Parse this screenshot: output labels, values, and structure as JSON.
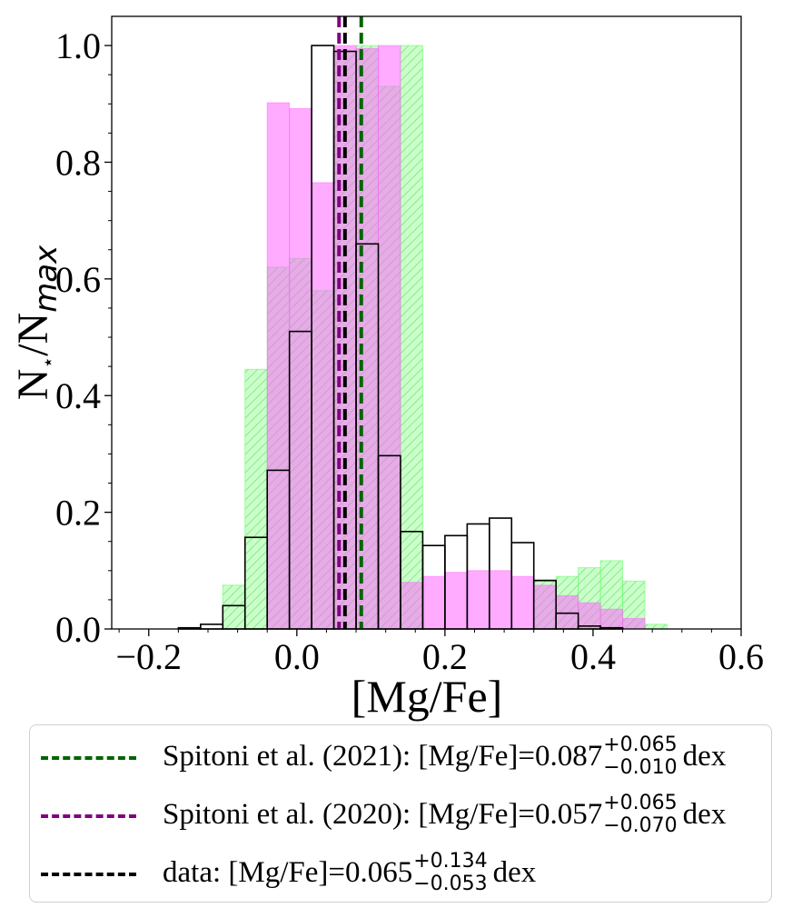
{
  "chart_data": {
    "type": "histogram",
    "xlabel": "[Mg/Fe]",
    "ylabel_main": "N",
    "ylabel_star": "⋆",
    "ylabel_slash": "/N",
    "ylabel_sub": "max",
    "xlim": [
      -0.25,
      0.6
    ],
    "ylim": [
      0.0,
      1.05
    ],
    "xticks": [
      -0.2,
      0.0,
      0.2,
      0.4,
      0.6
    ],
    "xtick_labels": [
      "−0.2",
      "0.0",
      "0.2",
      "0.4",
      "0.6"
    ],
    "yticks": [
      0.0,
      0.2,
      0.4,
      0.6,
      0.8,
      1.0
    ],
    "ytick_labels": [
      "0.0",
      "0.2",
      "0.4",
      "0.6",
      "0.8",
      "1.0"
    ],
    "bin_edges": [
      -0.16,
      -0.13,
      -0.1,
      -0.07,
      -0.04,
      -0.01,
      0.02,
      0.05,
      0.08,
      0.11,
      0.14,
      0.17,
      0.2,
      0.23,
      0.26,
      0.29,
      0.32,
      0.35,
      0.38,
      0.41,
      0.44,
      0.47,
      0.5
    ],
    "series": [
      {
        "name": "Spitoni et al. (2021) model",
        "color": "#66ff66",
        "style": "hatched",
        "values": [
          0,
          0,
          0.075,
          0.445,
          0.62,
          0.635,
          0.58,
          0.99,
          1.0,
          0.93,
          1.0,
          0,
          0,
          0,
          0,
          0,
          0.085,
          0.09,
          0.105,
          0.117,
          0.082,
          0.008
        ]
      },
      {
        "name": "Spitoni et al. (2020) model",
        "color": "#ff66ff",
        "style": "filled",
        "values": [
          0,
          0,
          0,
          0,
          0.902,
          0.892,
          0.765,
          1.0,
          0.995,
          1.0,
          0.08,
          0.09,
          0.097,
          0.1,
          0.1,
          0.09,
          0.075,
          0.057,
          0.045,
          0.034,
          0.018,
          0
        ]
      },
      {
        "name": "data",
        "color": "#000000",
        "style": "step",
        "values": [
          0.002,
          0.008,
          0.04,
          0.157,
          0.272,
          0.51,
          1.0,
          0.99,
          0.66,
          0.297,
          0.167,
          0.143,
          0.16,
          0.18,
          0.19,
          0.148,
          0.083,
          0.027,
          0.005,
          0.002,
          0,
          0
        ]
      }
    ],
    "vlines": [
      {
        "name": "Spitoni et al. (2021)",
        "x": 0.087,
        "color": "#006400"
      },
      {
        "name": "Spitoni et al. (2020)",
        "x": 0.057,
        "color": "#800080"
      },
      {
        "name": "data",
        "x": 0.065,
        "color": "#000000"
      }
    ]
  },
  "legend": [
    {
      "color": "#006400",
      "prefix": "Spitoni et al. (2021): [Mg/Fe]=0.087",
      "sup": "+0.065",
      "sub": "−0.010",
      "suffix": "dex"
    },
    {
      "color": "#800080",
      "prefix": "Spitoni et al. (2020): [Mg/Fe]=0.057",
      "sup": "+0.065",
      "sub": "−0.070",
      "suffix": "dex"
    },
    {
      "color": "#000000",
      "prefix": "data: [Mg/Fe]=0.065",
      "sup": "+0.134",
      "sub": "−0.053",
      "suffix": "dex"
    }
  ]
}
